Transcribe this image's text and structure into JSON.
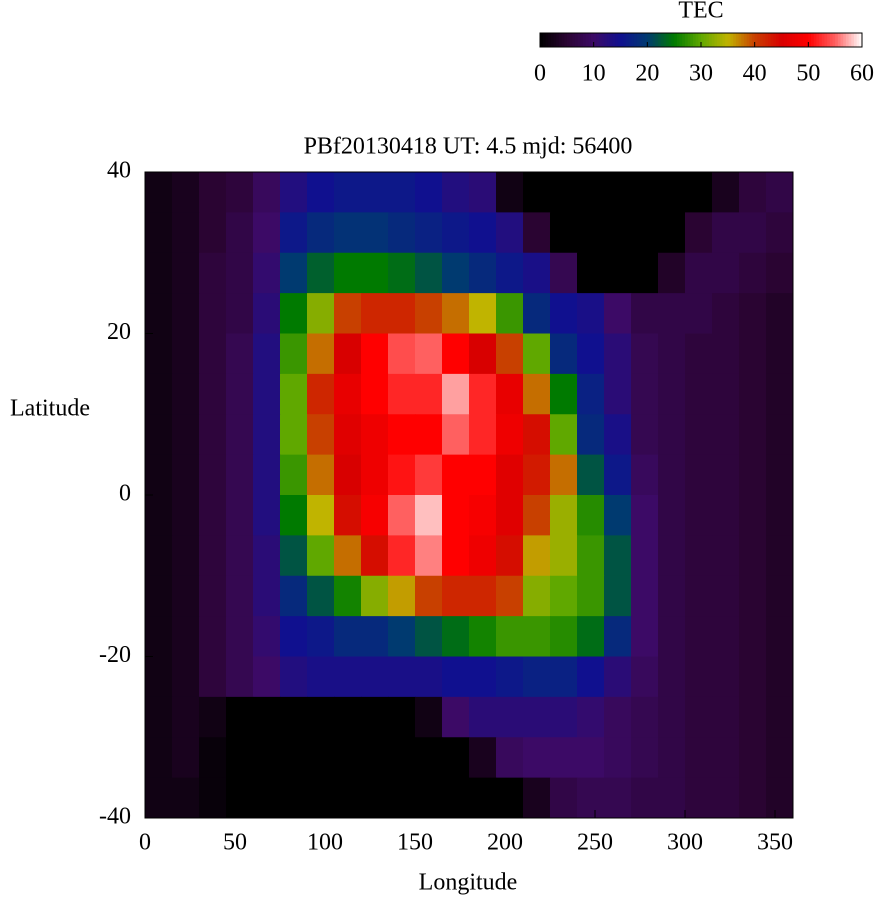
{
  "chart_data": {
    "type": "heatmap",
    "title": "PBf20130418  UT: 4.5  mjd: 56400",
    "xlabel": "Longitude",
    "ylabel": "Latitude",
    "colorbar_label": "TEC",
    "x": [
      7.5,
      22.5,
      37.5,
      52.5,
      67.5,
      82.5,
      97.5,
      112.5,
      127.5,
      142.5,
      157.5,
      172.5,
      187.5,
      202.5,
      217.5,
      232.5,
      247.5,
      262.5,
      277.5,
      292.5,
      307.5,
      322.5,
      337.5,
      352.5
    ],
    "y": [
      37.5,
      32.5,
      27.5,
      22.5,
      17.5,
      12.5,
      7.5,
      2.5,
      -2.5,
      -7.5,
      -12.5,
      -17.5,
      -22.5,
      -27.5,
      -32.5,
      -37.5
    ],
    "values": [
      [
        2,
        3,
        5,
        6,
        9,
        13,
        15,
        16,
        16,
        16,
        15,
        13,
        12,
        2,
        0,
        0,
        0,
        0,
        0,
        0,
        0,
        3,
        6,
        7
      ],
      [
        2,
        3,
        5,
        7,
        10,
        16,
        18,
        19,
        19,
        18,
        17,
        16,
        15,
        13,
        5,
        0,
        0,
        0,
        0,
        0,
        5,
        7,
        7,
        6
      ],
      [
        2,
        3,
        6,
        7,
        11,
        20,
        23,
        25,
        25,
        24,
        22,
        20,
        18,
        16,
        14,
        8,
        0,
        0,
        0,
        4,
        7,
        7,
        6,
        5
      ],
      [
        2,
        3,
        6,
        7,
        12,
        25,
        32,
        40,
        42,
        42,
        40,
        38,
        35,
        28,
        18,
        15,
        14,
        10,
        7,
        7,
        7,
        6,
        5,
        4
      ],
      [
        2,
        3,
        6,
        8,
        13,
        28,
        38,
        45,
        50,
        54,
        55,
        50,
        45,
        40,
        30,
        18,
        15,
        12,
        8,
        7,
        6,
        6,
        5,
        4
      ],
      [
        2,
        3,
        6,
        8,
        13,
        30,
        42,
        47,
        50,
        52,
        52,
        57,
        52,
        47,
        38,
        25,
        17,
        12,
        8,
        7,
        6,
        6,
        5,
        4
      ],
      [
        2,
        3,
        6,
        8,
        13,
        30,
        40,
        46,
        48,
        50,
        50,
        55,
        52,
        48,
        44,
        30,
        18,
        14,
        8,
        7,
        6,
        6,
        5,
        4
      ],
      [
        2,
        3,
        6,
        8,
        13,
        28,
        38,
        45,
        48,
        51,
        53,
        50,
        50,
        46,
        43,
        38,
        22,
        16,
        9,
        7,
        6,
        6,
        5,
        4
      ],
      [
        2,
        3,
        6,
        8,
        13,
        25,
        35,
        44,
        49,
        55,
        58,
        50,
        49,
        46,
        40,
        33,
        27,
        20,
        10,
        7,
        6,
        6,
        5,
        4
      ],
      [
        2,
        3,
        6,
        8,
        12,
        22,
        30,
        38,
        44,
        52,
        56,
        50,
        48,
        44,
        36,
        33,
        28,
        22,
        10,
        7,
        6,
        6,
        5,
        4
      ],
      [
        2,
        3,
        6,
        8,
        12,
        18,
        22,
        26,
        32,
        36,
        40,
        42,
        42,
        40,
        32,
        30,
        28,
        22,
        10,
        7,
        6,
        6,
        5,
        4
      ],
      [
        2,
        3,
        6,
        8,
        11,
        15,
        16,
        18,
        18,
        20,
        22,
        24,
        26,
        28,
        28,
        27,
        24,
        18,
        10,
        7,
        6,
        6,
        5,
        4
      ],
      [
        2,
        3,
        6,
        8,
        10,
        13,
        14,
        14,
        14,
        14,
        14,
        15,
        15,
        16,
        17,
        17,
        15,
        12,
        9,
        7,
        6,
        6,
        5,
        4
      ],
      [
        2,
        3,
        2,
        0,
        0,
        0,
        0,
        0,
        0,
        0,
        2,
        10,
        12,
        12,
        12,
        12,
        11,
        9,
        8,
        7,
        6,
        6,
        5,
        4
      ],
      [
        2,
        3,
        1,
        0,
        0,
        0,
        0,
        0,
        0,
        0,
        0,
        0,
        3,
        9,
        10,
        10,
        10,
        9,
        8,
        7,
        6,
        6,
        5,
        4
      ],
      [
        2,
        2,
        1,
        0,
        0,
        0,
        0,
        0,
        0,
        0,
        0,
        0,
        0,
        0,
        3,
        7,
        8,
        8,
        7,
        7,
        6,
        6,
        5,
        4
      ]
    ],
    "xlim": [
      0,
      360
    ],
    "xticks": [
      0,
      50,
      100,
      150,
      200,
      250,
      300,
      350
    ],
    "ylim": [
      -40,
      40
    ],
    "yticks": [
      -40,
      -20,
      0,
      20,
      40
    ],
    "zlim": [
      0,
      60
    ],
    "zticks": [
      0,
      10,
      20,
      30,
      40,
      50,
      60
    ],
    "colormap": [
      "#000000",
      "#2a0432",
      "#3c0a66",
      "#10108f",
      "#003a70",
      "#007a00",
      "#60a800",
      "#c0b400",
      "#c84000",
      "#d80000",
      "#ff0000",
      "#ff6060",
      "#ffffff"
    ]
  }
}
